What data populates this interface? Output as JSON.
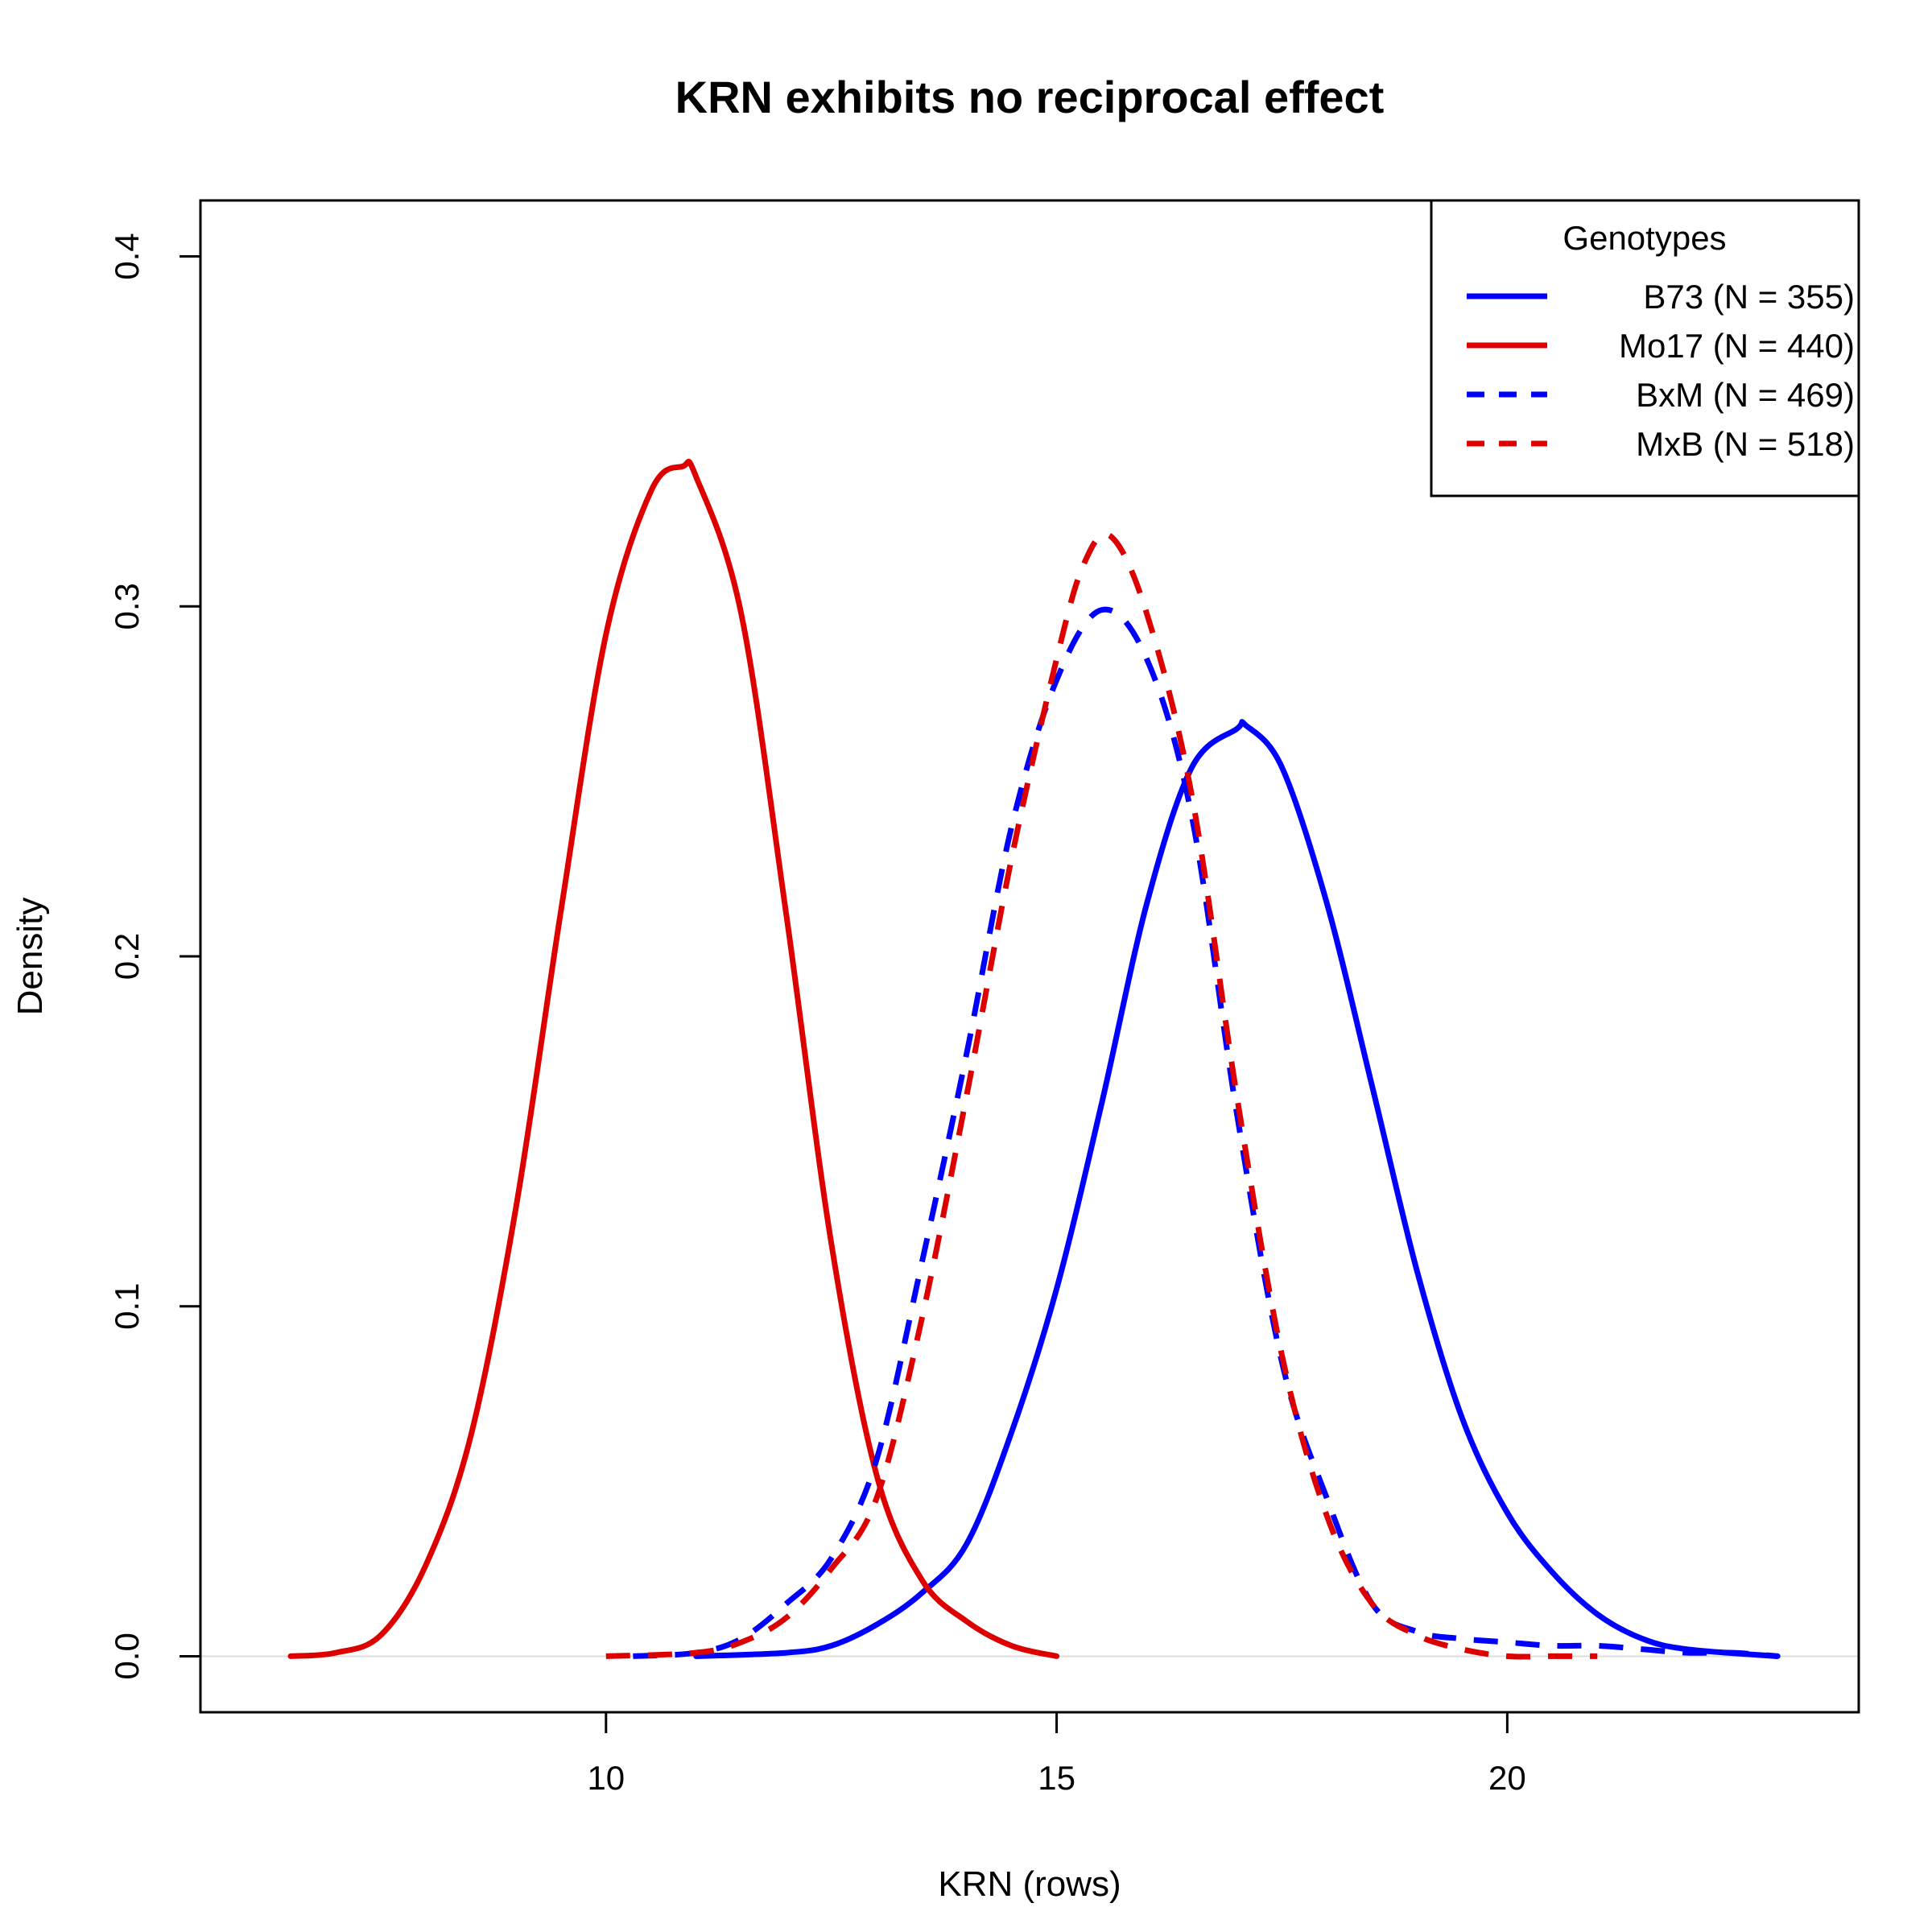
{
  "chart_data": {
    "type": "line",
    "title": "KRN exhibits no reciprocal effect",
    "xlabel": "KRN (rows)",
    "ylabel": "Density",
    "xlim": [
      5.5,
      23.9
    ],
    "ylim": [
      -0.016,
      0.416
    ],
    "x_ticks": [
      10,
      15,
      20
    ],
    "x_tick_labels": [
      "10",
      "15",
      "20"
    ],
    "y_ticks": [
      0.0,
      0.1,
      0.2,
      0.3,
      0.4
    ],
    "y_tick_labels": [
      "0.0",
      "0.1",
      "0.2",
      "0.3",
      "0.4"
    ],
    "grid": false,
    "baseline": 0,
    "legend": {
      "title": "Genotypes",
      "position": "top-right"
    },
    "series": [
      {
        "name": "B73 (N = 355)",
        "color": "#0000FF",
        "dash": "solid",
        "x": [
          11.0,
          12.0,
          12.5,
          13.0,
          13.5,
          14.0,
          14.5,
          15.0,
          15.5,
          16.0,
          16.5,
          17.0,
          17.1,
          17.5,
          18.0,
          18.5,
          19.0,
          19.5,
          20.0,
          20.5,
          21.0,
          21.5,
          22.0,
          23.0
        ],
        "y": [
          0.0,
          0.001,
          0.003,
          0.009,
          0.018,
          0.032,
          0.064,
          0.105,
          0.158,
          0.215,
          0.254,
          0.265,
          0.266,
          0.254,
          0.215,
          0.163,
          0.11,
          0.068,
          0.041,
          0.024,
          0.012,
          0.005,
          0.002,
          0.0
        ]
      },
      {
        "name": "Mo17 (N = 440)",
        "color": "#DD0000",
        "dash": "solid",
        "x": [
          6.5,
          7.0,
          7.5,
          8.0,
          8.5,
          9.0,
          9.5,
          10.0,
          10.5,
          10.85,
          11.0,
          11.5,
          12.0,
          12.5,
          13.0,
          13.5,
          14.0,
          14.5,
          15.0
        ],
        "y": [
          0.0,
          0.001,
          0.006,
          0.026,
          0.063,
          0.128,
          0.213,
          0.292,
          0.333,
          0.34,
          0.337,
          0.298,
          0.212,
          0.118,
          0.052,
          0.022,
          0.01,
          0.003,
          0.0
        ]
      },
      {
        "name": "BxM (N = 469)",
        "color": "#0000FF",
        "dash": "dashed",
        "x": [
          10.3,
          11.0,
          11.5,
          12.0,
          12.5,
          13.0,
          13.5,
          14.0,
          14.5,
          15.0,
          15.5,
          16.0,
          16.5,
          17.0,
          17.5,
          18.0,
          18.5,
          19.0,
          19.5,
          20.0,
          20.5,
          21.0,
          21.5,
          22.0,
          22.5,
          23.0
        ],
        "y": [
          0.0,
          0.001,
          0.005,
          0.015,
          0.028,
          0.056,
          0.112,
          0.172,
          0.237,
          0.279,
          0.299,
          0.285,
          0.24,
          0.155,
          0.084,
          0.045,
          0.015,
          0.007,
          0.005,
          0.004,
          0.003,
          0.003,
          0.002,
          0.001,
          0.001,
          0.0
        ]
      },
      {
        "name": "MxB (N = 518)",
        "color": "#DD0000",
        "dash": "dashed",
        "x": [
          10.0,
          11.0,
          11.5,
          12.0,
          12.5,
          13.0,
          13.5,
          14.0,
          14.5,
          15.0,
          15.3,
          15.6,
          16.0,
          16.5,
          17.0,
          17.5,
          18.0,
          18.5,
          19.0,
          19.5,
          20.0,
          20.5,
          21.0
        ],
        "y": [
          0.0,
          0.001,
          0.004,
          0.011,
          0.025,
          0.045,
          0.096,
          0.16,
          0.228,
          0.285,
          0.312,
          0.32,
          0.298,
          0.246,
          0.16,
          0.086,
          0.04,
          0.015,
          0.006,
          0.002,
          0.0,
          0.0,
          0.0
        ]
      }
    ]
  }
}
